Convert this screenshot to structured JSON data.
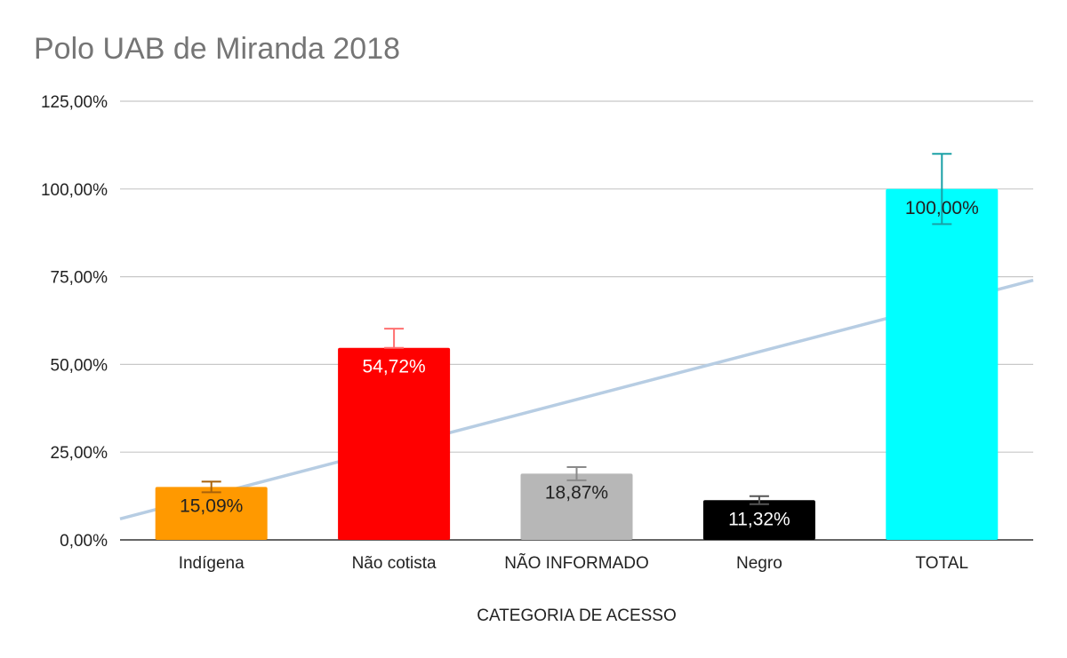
{
  "chart_data": {
    "type": "bar",
    "title": "Polo UAB de Miranda 2018",
    "xlabel": "CATEGORIA DE ACESSO",
    "ylabel": "",
    "ylim": [
      0,
      125
    ],
    "yticks": [
      0,
      25,
      50,
      75,
      100,
      125
    ],
    "ytick_labels": [
      "0,00%",
      "25,00%",
      "50,00%",
      "75,00%",
      "100,00%",
      "125,00%"
    ],
    "categories": [
      "Indígena",
      "Não cotista",
      "NÃO INFORMADO",
      "Negro",
      "TOTAL"
    ],
    "values": [
      15.09,
      54.72,
      18.87,
      11.32,
      100.0
    ],
    "data_labels": [
      "15,09%",
      "54,72%",
      "18,87%",
      "11,32%",
      "100,00%"
    ],
    "bar_colors": [
      "#ff9900",
      "#ff0000",
      "#b7b7b7",
      "#000000",
      "#00ffff"
    ],
    "label_colors": [
      "#222222",
      "#ffffff",
      "#222222",
      "#ffffff",
      "#222222"
    ],
    "error_bar_colors": [
      "#a9620a",
      "#ff7070",
      "#8a8a8a",
      "#555555",
      "#1aa0a6"
    ],
    "error_bars": [
      {
        "low": 13.58,
        "high": 16.6
      },
      {
        "low": 54.72,
        "high": 60.19
      },
      {
        "low": 16.98,
        "high": 20.76
      },
      {
        "low": 10.19,
        "high": 12.45
      },
      {
        "low": 90.0,
        "high": 110.0
      }
    ],
    "trendline": {
      "type": "linear",
      "color": "#b7cde3",
      "start": 6.0,
      "end": 74.0
    },
    "grid": true,
    "legend": "none"
  }
}
